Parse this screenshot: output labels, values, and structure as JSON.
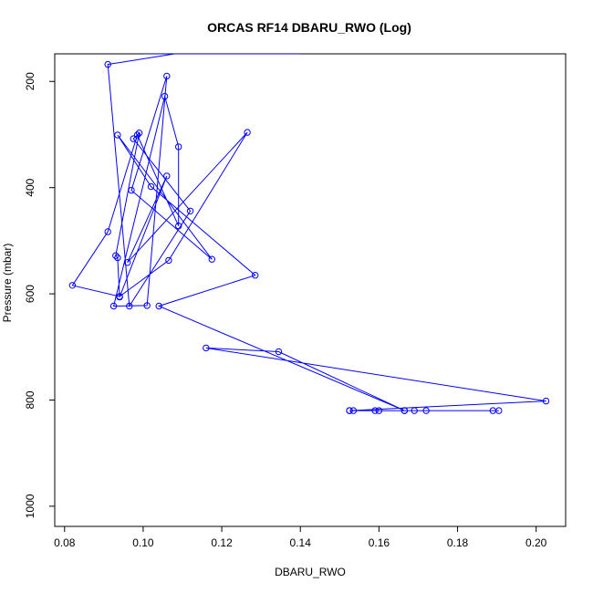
{
  "chart_data": {
    "type": "line",
    "title": "ORCAS RF14 DBARU_RWO (Log)",
    "xlabel": "DBARU_RWO",
    "ylabel": "Pressure (mbar)",
    "xlim": [
      0.0775,
      0.2075
    ],
    "ylim": [
      1038,
      148
    ],
    "y_inverted": true,
    "x_ticks": [
      "0.08",
      "0.10",
      "0.12",
      "0.14",
      "0.16",
      "0.18",
      "0.20"
    ],
    "x_tick_values": [
      0.08,
      0.1,
      0.12,
      0.14,
      0.16,
      0.18,
      0.2
    ],
    "y_ticks": [
      "200",
      "400",
      "600",
      "800",
      "1000"
    ],
    "y_tick_values": [
      200,
      400,
      600,
      800,
      1000
    ],
    "grid": false,
    "legend": "none",
    "series_color": "#0000ff",
    "marker": "open-circle",
    "series": [
      {
        "points": [
          [
            0.1525,
            820
          ],
          [
            0.1535,
            820
          ],
          [
            0.159,
            820
          ],
          [
            0.16,
            820
          ],
          [
            0.1665,
            820
          ],
          [
            0.169,
            820
          ],
          [
            0.172,
            820
          ],
          [
            0.189,
            820
          ],
          [
            0.1905,
            820
          ],
          [
            0.1525,
            820
          ],
          [
            0.2025,
            802
          ],
          [
            0.116,
            702
          ],
          [
            0.1345,
            709
          ],
          [
            0.1665,
            820
          ],
          [
            0.104,
            623
          ],
          [
            0.1285,
            565
          ],
          [
            0.102,
            398
          ],
          [
            0.0935,
            301
          ],
          [
            0.1175,
            535
          ],
          [
            0.097,
            405
          ],
          [
            0.106,
            190
          ],
          [
            0.101,
            622
          ],
          [
            0.0925,
            623
          ],
          [
            0.1055,
            228
          ],
          [
            0.109,
            323
          ],
          [
            0.109,
            472
          ],
          [
            0.0985,
            301
          ],
          [
            0.091,
            483
          ],
          [
            0.082,
            584
          ],
          [
            0.094,
            605
          ],
          [
            0.1065,
            537
          ],
          [
            0.1265,
            296
          ],
          [
            0.096,
            541
          ],
          [
            0.106,
            378
          ],
          [
            0.094,
            606
          ],
          [
            0.0935,
            532
          ],
          [
            0.093,
            528
          ],
          [
            0.099,
            297
          ],
          [
            0.0975,
            308
          ],
          [
            0.112,
            444
          ],
          [
            0.0965,
            623
          ],
          [
            0.091,
            168
          ],
          [
            0.108,
            148
          ],
          [
            0.14,
            148
          ],
          [
            0.116,
            148
          ],
          [
            0.109,
            148
          ],
          [
            0.103,
            148
          ],
          [
            0.1,
            148
          ]
        ]
      }
    ]
  }
}
